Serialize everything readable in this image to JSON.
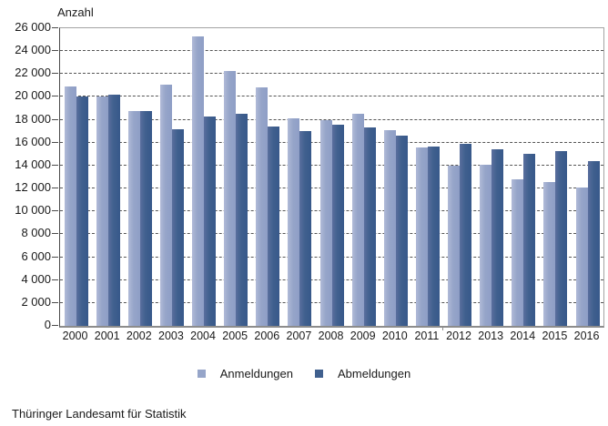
{
  "chart": {
    "axis_title": "Anzahl",
    "source": "Thüringer Landesamt für Statistik"
  },
  "legend": {
    "items": [
      {
        "label": "Anmeldungen",
        "color": "#96a5c9"
      },
      {
        "label": "Abmeldungen",
        "color": "#40608e"
      }
    ]
  },
  "colors": {
    "series_light": "#96a5c9",
    "series_dark": "#40608e",
    "axis_line": "#8c8c8c",
    "gridline": "#555555",
    "text": "#1a1a1a",
    "background": "#ffffff"
  },
  "chart_data": {
    "type": "bar",
    "title": "Anzahl",
    "ylabel": "Anzahl",
    "xlabel": "",
    "categories": [
      "2000",
      "2001",
      "2002",
      "2003",
      "2004",
      "2005",
      "2006",
      "2007",
      "2008",
      "2009",
      "2010",
      "2011",
      "2012",
      "2013",
      "2014",
      "2015",
      "2016"
    ],
    "series": [
      {
        "name": "Anmeldungen",
        "values": [
          20900,
          20000,
          18800,
          21100,
          25300,
          22300,
          20800,
          18100,
          18000,
          18500,
          17100,
          15600,
          14000,
          14100,
          12800,
          12600,
          12100
        ]
      },
      {
        "name": "Abmeldungen",
        "values": [
          20000,
          20200,
          18800,
          17200,
          18300,
          18500,
          17400,
          17000,
          17600,
          17300,
          16600,
          15700,
          15900,
          15400,
          15000,
          15300,
          14400
        ]
      }
    ],
    "ylim": [
      0,
      26000
    ],
    "ytick_step": 2000,
    "ytick_labels": [
      "0",
      "2 000",
      "4 000",
      "6 000",
      "8 000",
      "10 000",
      "12 000",
      "14 000",
      "16 000",
      "18 000",
      "20 000",
      "22 000",
      "24 000",
      "26 000"
    ],
    "grid": "horizontal-dashed",
    "legend_position": "bottom-center"
  }
}
